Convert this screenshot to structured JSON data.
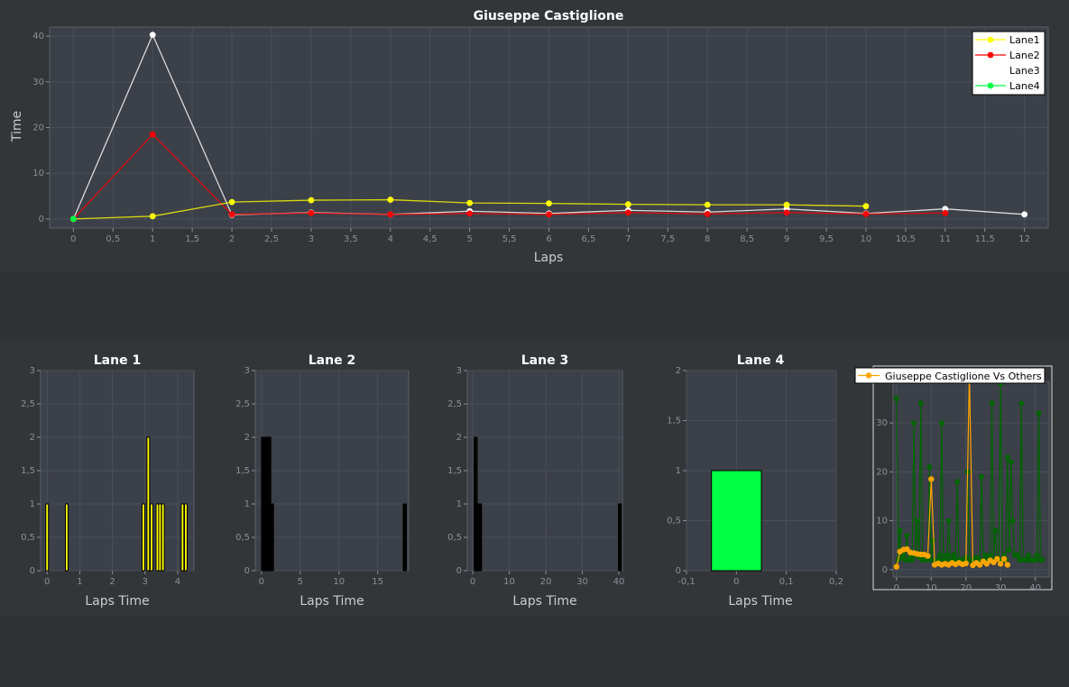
{
  "colors": {
    "lane1": "#ffff00",
    "lane2": "#ff0000",
    "lane3": "#ffffff",
    "lane4": "#00ff44",
    "plot_bg": "#3c4049",
    "grid": "#4a4f58",
    "comparison_main": "#ffa500",
    "comparison_others": "#006400"
  },
  "chart_data": [
    {
      "type": "line",
      "title": "Giuseppe Castiglione",
      "xlabel": "Laps",
      "ylabel": "Time",
      "xlim": [
        -0.3,
        12.3
      ],
      "ylim": [
        -2,
        42
      ],
      "xticks": [
        "0",
        "0,5",
        "1",
        "1,5",
        "2",
        "2,5",
        "3",
        "3,5",
        "4",
        "4,5",
        "5",
        "5,5",
        "6",
        "6,5",
        "7",
        "7,5",
        "8",
        "8,5",
        "9",
        "9,5",
        "10",
        "10,5",
        "11",
        "11,5",
        "12"
      ],
      "yticks": [
        "0",
        "10",
        "20",
        "30",
        "40"
      ],
      "grid": true,
      "legend_position": "top-right",
      "series": [
        {
          "name": "Lane1",
          "color_key": "lane1",
          "x": [
            0,
            1,
            2,
            3,
            4,
            5,
            6,
            7,
            8,
            9,
            10
          ],
          "y": [
            0,
            0.6,
            3.7,
            4.1,
            4.2,
            3.5,
            3.4,
            3.2,
            3.1,
            3.1,
            2.8
          ]
        },
        {
          "name": "Lane2",
          "color_key": "lane2",
          "x": [
            0,
            1,
            2,
            3,
            4,
            5,
            6,
            7,
            8,
            9,
            10,
            11
          ],
          "y": [
            0,
            18.5,
            1.0,
            1.3,
            1.0,
            1.2,
            1.0,
            1.4,
            1.1,
            1.4,
            1.1,
            1.3
          ]
        },
        {
          "name": "Lane3",
          "color_key": "lane3",
          "x": [
            0,
            1,
            2,
            3,
            4,
            5,
            6,
            7,
            8,
            9,
            10,
            11,
            12
          ],
          "y": [
            0,
            40.3,
            0.9,
            1.4,
            1.0,
            1.7,
            1.2,
            1.9,
            1.5,
            2.2,
            1.2,
            2.2,
            1.0
          ]
        },
        {
          "name": "Lane4",
          "color_key": "lane4",
          "x": [
            0
          ],
          "y": [
            0
          ]
        }
      ]
    },
    {
      "type": "bar",
      "title": "Lane 1",
      "xlabel": "Laps Time",
      "ylabel": "",
      "color_key": "lane1",
      "xlim": [
        -0.2,
        4.5
      ],
      "ylim": [
        0,
        3
      ],
      "xticks": [
        "0",
        "1",
        "2",
        "3",
        "4"
      ],
      "yticks": [
        "0",
        "0,5",
        "1",
        "1,5",
        "2",
        "2,5",
        "3"
      ],
      "bar_width": 0.08,
      "x": [
        0.0,
        0.6,
        2.95,
        3.1,
        3.2,
        3.38,
        3.46,
        3.55,
        4.15,
        4.25
      ],
      "values": [
        1,
        1,
        1,
        2,
        1,
        1,
        1,
        1,
        1,
        1
      ]
    },
    {
      "type": "bar",
      "title": "Lane 2",
      "xlabel": "Laps Time",
      "ylabel": "",
      "color_key": "dark",
      "xlim": [
        -0.8,
        19
      ],
      "ylim": [
        0,
        3
      ],
      "xticks": [
        "0",
        "5",
        "10",
        "15"
      ],
      "yticks": [
        "0",
        "0,5",
        "1",
        "1,5",
        "2",
        "2,5",
        "3"
      ],
      "bar_width": 0.4,
      "x": [
        0.2,
        0.6,
        1.0,
        1.35,
        18.5
      ],
      "values": [
        2,
        2,
        2,
        1,
        1
      ]
    },
    {
      "type": "bar",
      "title": "Lane 3",
      "xlabel": "Laps Time",
      "ylabel": "",
      "color_key": "dark",
      "xlim": [
        -1.5,
        41
      ],
      "ylim": [
        0,
        3
      ],
      "xticks": [
        "0",
        "10",
        "20",
        "30",
        "40"
      ],
      "yticks": [
        "0",
        "0,5",
        "1",
        "1,5",
        "2",
        "2,5",
        "3"
      ],
      "bar_width": 0.8,
      "x": [
        0.8,
        1.3,
        2.0,
        40.3
      ],
      "values": [
        2,
        1,
        1,
        1
      ]
    },
    {
      "type": "bar",
      "title": "Lane 4",
      "xlabel": "Laps Time",
      "ylabel": "",
      "color_key": "lane4",
      "xlim": [
        -0.1,
        0.2
      ],
      "ylim": [
        0,
        2
      ],
      "xticks": [
        "-0,1",
        "0",
        "0,1",
        "0,2"
      ],
      "yticks": [
        "0",
        "0,5",
        "1",
        "1,5",
        "2"
      ],
      "bar_width": 0.1,
      "x": [
        0
      ],
      "values": [
        1
      ]
    },
    {
      "type": "line",
      "title": "",
      "xlabel": "",
      "ylabel": "",
      "xlim": [
        -1,
        44
      ],
      "ylim": [
        -1.5,
        38.5
      ],
      "xticks": [
        "0",
        "10",
        "20",
        "30",
        "40"
      ],
      "yticks": [
        "0",
        "10",
        "20",
        "30"
      ],
      "legend_position": "top",
      "series": [
        {
          "name": "Giuseppe Castiglione Vs Others",
          "color_key": "comparison_main",
          "x": [
            0,
            1,
            2,
            3,
            4,
            5,
            6,
            7,
            8,
            9,
            10,
            11,
            12,
            13,
            14,
            15,
            16,
            17,
            18,
            19,
            20,
            21,
            22,
            23,
            24,
            25,
            26,
            27,
            28,
            29,
            30,
            31,
            32
          ],
          "y": [
            0.6,
            3.7,
            4.1,
            4.2,
            3.5,
            3.4,
            3.2,
            3.1,
            3.1,
            2.8,
            18.5,
            1.0,
            1.3,
            1.0,
            1.2,
            1.0,
            1.4,
            1.1,
            1.4,
            1.1,
            1.3,
            40.3,
            0.9,
            1.4,
            1.0,
            1.7,
            1.2,
            1.9,
            1.5,
            2.2,
            1.2,
            2.2,
            1.0
          ]
        },
        {
          "name": "",
          "color_key": "comparison_others",
          "x": [
            0,
            0.5,
            1,
            1.5,
            2,
            2.5,
            3,
            3.5,
            4,
            4.5,
            5,
            5.5,
            6,
            6.5,
            7,
            7.5,
            8,
            8.5,
            9,
            9.5,
            10,
            10.5,
            11,
            11.5,
            12,
            12.5,
            13,
            13.5,
            14,
            14.5,
            15,
            15.5,
            16,
            16.5,
            17,
            17.5,
            18,
            18.5,
            19,
            19.5,
            20,
            20.5,
            21,
            21.5,
            22,
            22.5,
            23,
            23.5,
            24,
            24.5,
            25,
            25.5,
            26,
            26.5,
            27,
            27.5,
            28,
            28.5,
            29,
            29.5,
            30,
            30.5,
            31,
            31.5,
            32,
            32.5,
            33,
            33.5,
            34,
            34.5,
            35,
            35.5,
            36,
            36.5,
            37,
            37.5,
            38,
            38.5,
            39,
            39.5,
            40,
            40.5,
            41,
            41.5,
            42
          ],
          "y": [
            35,
            2,
            8,
            2.5,
            3,
            2,
            7,
            2,
            2.5,
            2,
            30,
            3,
            10,
            2.5,
            34,
            2,
            2,
            3,
            2,
            21,
            2,
            6,
            2,
            2,
            2,
            3,
            30,
            2,
            2,
            3,
            10,
            2,
            2,
            3,
            2,
            18,
            2,
            2,
            2,
            2,
            2.5,
            20,
            2,
            2,
            2,
            2,
            2.5,
            2,
            2,
            19,
            2,
            3,
            2,
            2,
            3,
            34,
            2,
            8,
            2,
            2,
            38,
            2,
            3,
            2,
            23,
            4,
            22,
            10,
            3,
            3,
            3,
            2,
            34,
            2,
            2,
            2,
            3,
            2,
            2,
            2,
            2,
            3,
            32,
            2,
            2
          ]
        }
      ]
    }
  ]
}
